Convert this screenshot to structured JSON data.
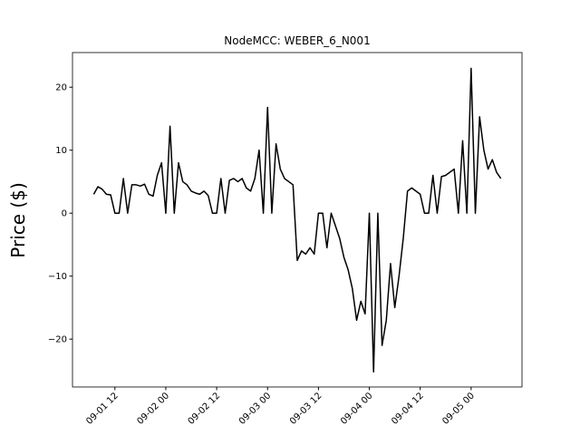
{
  "chart_data": {
    "type": "line",
    "title": "NodeMCC: WEBER_6_N001",
    "y_label": "Price ($)",
    "x": [
      "09-01 07",
      "09-01 08",
      "09-01 09",
      "09-01 10",
      "09-01 11",
      "09-01 12",
      "09-01 13",
      "09-01 14",
      "09-01 15",
      "09-01 16",
      "09-01 17",
      "09-01 18",
      "09-01 19",
      "09-01 20",
      "09-01 21",
      "09-01 22",
      "09-01 23",
      "09-02 00",
      "09-02 01",
      "09-02 02",
      "09-02 03",
      "09-02 04",
      "09-02 05",
      "09-02 06",
      "09-02 07",
      "09-02 08",
      "09-02 09",
      "09-02 10",
      "09-02 11",
      "09-02 12",
      "09-02 13",
      "09-02 14",
      "09-02 15",
      "09-02 16",
      "09-02 17",
      "09-02 18",
      "09-02 19",
      "09-02 20",
      "09-02 21",
      "09-02 22",
      "09-02 23",
      "09-03 00",
      "09-03 01",
      "09-03 02",
      "09-03 03",
      "09-03 04",
      "09-03 05",
      "09-03 06",
      "09-03 07",
      "09-03 08",
      "09-03 09",
      "09-03 10",
      "09-03 11",
      "09-03 12",
      "09-03 13",
      "09-03 14",
      "09-03 15",
      "09-03 16",
      "09-03 17",
      "09-03 18",
      "09-03 19",
      "09-03 20",
      "09-03 21",
      "09-03 22",
      "09-03 23",
      "09-04 00",
      "09-04 01",
      "09-04 02",
      "09-04 03",
      "09-04 04",
      "09-04 05",
      "09-04 06",
      "09-04 07",
      "09-04 08",
      "09-04 09",
      "09-04 10",
      "09-04 11",
      "09-04 12",
      "09-04 13",
      "09-04 14",
      "09-04 15",
      "09-04 16",
      "09-04 17",
      "09-04 18",
      "09-04 19",
      "09-04 20",
      "09-04 21",
      "09-04 22",
      "09-04 23",
      "09-05 00",
      "09-05 01",
      "09-05 02",
      "09-05 03",
      "09-05 04",
      "09-05 05",
      "09-05 06",
      "09-05 07"
    ],
    "series": [
      {
        "name": "Price",
        "color": "#000000",
        "values": [
          3,
          4.2,
          3.8,
          3,
          2.9,
          0,
          0,
          5.5,
          0,
          4.5,
          4.5,
          4.3,
          4.6,
          3,
          2.7,
          6,
          8,
          0,
          13.8,
          0,
          8,
          5,
          4.5,
          3.5,
          3.2,
          3,
          3.5,
          2.8,
          0,
          0,
          5.5,
          0,
          5.2,
          5.5,
          5,
          5.5,
          4,
          3.5,
          5.5,
          10,
          0,
          16.8,
          0,
          11,
          7,
          5.5,
          5,
          4.5,
          -7.5,
          -6,
          -6.5,
          -5.5,
          -6.5,
          0,
          0,
          -5.5,
          0,
          -2,
          -4,
          -7,
          -9,
          -12,
          -17,
          -14,
          -16,
          0,
          -25.2,
          0,
          -21,
          -17,
          -8,
          -15,
          -10,
          -4,
          3.5,
          4,
          3.5,
          3,
          0,
          0,
          6,
          0,
          5.8,
          6,
          6.5,
          7,
          0,
          11.5,
          0,
          23,
          0,
          15.3,
          10,
          7,
          8.5,
          6.5,
          5.5
        ]
      }
    ],
    "xlim": [
      "09-01 02",
      "09-05 12"
    ],
    "xticks": [
      "09-01 12",
      "09-02 00",
      "09-02 12",
      "09-03 00",
      "09-03 12",
      "09-04 00",
      "09-04 12",
      "09-05 00"
    ],
    "ylim": [
      -27.6,
      25.5
    ],
    "yticks": [
      {
        "value": -20,
        "label": "−20"
      },
      {
        "value": -10,
        "label": "−10"
      },
      0,
      10,
      20
    ]
  }
}
